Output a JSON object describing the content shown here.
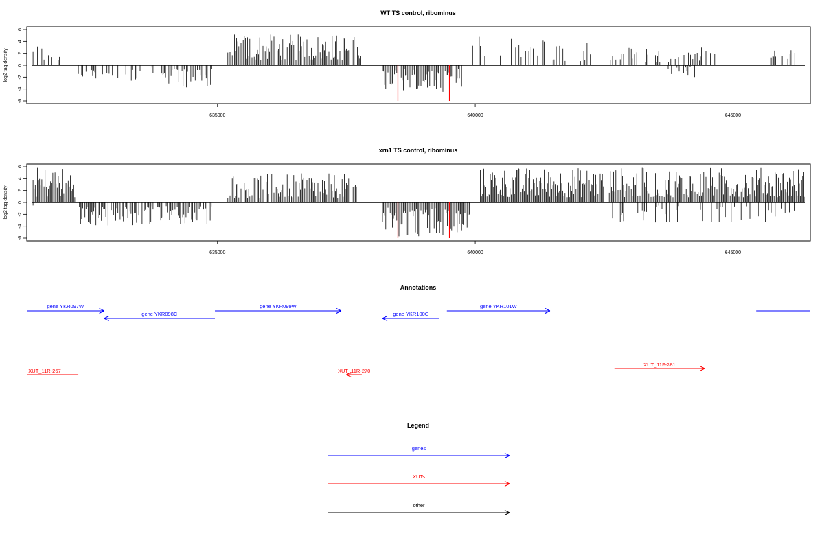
{
  "chart_data": [
    {
      "type": "bar",
      "title": "WT TS control, ribominus",
      "ylabel": "log2 tag density",
      "xlabel": "",
      "ylim": [
        -6,
        6
      ],
      "yticks": [
        -6,
        -4,
        -2,
        0,
        2,
        4,
        6
      ],
      "xlim": [
        631300,
        646500
      ],
      "xticks": [
        635000,
        640000,
        645000
      ],
      "grid": false,
      "bar_color": "#000000",
      "highlight_color": "#ff0000",
      "signal_regions": [
        {
          "start": 631400,
          "end": 632100,
          "strand": "+",
          "max": 3.6,
          "density": 0.35
        },
        {
          "start": 632300,
          "end": 633100,
          "strand": "-",
          "max": 2.8,
          "density": 0.35
        },
        {
          "start": 633200,
          "end": 633500,
          "strand": "-",
          "max": 2.8,
          "density": 0.35
        },
        {
          "start": 633600,
          "end": 634000,
          "strand": "-",
          "max": 2.5,
          "density": 0.35
        },
        {
          "start": 633950,
          "end": 634900,
          "strand": "-",
          "max": 3.8,
          "density": 0.55
        },
        {
          "start": 635200,
          "end": 637800,
          "strand": "+",
          "max": 5.2,
          "density": 0.95
        },
        {
          "start": 638200,
          "end": 639750,
          "strand": "-",
          "max": 4.5,
          "density": 0.9
        },
        {
          "start": 639950,
          "end": 640200,
          "strand": "+",
          "max": 5.0,
          "density": 0.4
        },
        {
          "start": 640400,
          "end": 642250,
          "strand": "+",
          "max": 4.5,
          "density": 0.35
        },
        {
          "start": 642600,
          "end": 644700,
          "strand": "+",
          "max": 3.2,
          "density": 0.4
        },
        {
          "start": 643700,
          "end": 644400,
          "strand": "-",
          "max": 2.0,
          "density": 0.3
        },
        {
          "start": 645700,
          "end": 646200,
          "strand": "+",
          "max": 2.6,
          "density": 0.4
        }
      ],
      "highlighted_bars": [
        {
          "x": 638500,
          "value": -6
        },
        {
          "x": 639500,
          "value": -6
        }
      ]
    },
    {
      "type": "bar",
      "title": "xrn1 TS control, ribominus",
      "ylabel": "log2 tag density",
      "xlabel": "",
      "ylim": [
        -6,
        6
      ],
      "yticks": [
        -6,
        -4,
        -2,
        0,
        2,
        4,
        6
      ],
      "xlim": [
        631300,
        646500
      ],
      "xticks": [
        635000,
        640000,
        645000
      ],
      "grid": false,
      "bar_color": "#000000",
      "highlight_color": "#ff0000",
      "signal_regions": [
        {
          "start": 631400,
          "end": 632250,
          "strand": "+",
          "max": 6.0,
          "density": 1.0
        },
        {
          "start": 631400,
          "end": 631500,
          "strand": "-",
          "max": 3.2,
          "density": 0.6
        },
        {
          "start": 632300,
          "end": 634900,
          "strand": "-",
          "max": 4.0,
          "density": 0.7
        },
        {
          "start": 635200,
          "end": 637700,
          "strand": "+",
          "max": 4.9,
          "density": 0.9
        },
        {
          "start": 638200,
          "end": 639900,
          "strand": "-",
          "max": 5.8,
          "density": 1.0
        },
        {
          "start": 640100,
          "end": 642500,
          "strand": "+",
          "max": 5.9,
          "density": 1.0
        },
        {
          "start": 642600,
          "end": 646400,
          "strand": "+",
          "max": 5.9,
          "density": 1.0
        },
        {
          "start": 642600,
          "end": 646400,
          "strand": "-",
          "max": 3.4,
          "density": 0.25
        }
      ],
      "highlighted_bars": [
        {
          "x": 638500,
          "value": -6
        },
        {
          "x": 639500,
          "value": -6
        }
      ]
    }
  ],
  "annotations": {
    "title": "Annotations",
    "genes_color": "#0000ff",
    "xuts_color": "#ff0000",
    "genes": [
      {
        "label": "gene YKR097W",
        "start": 631300,
        "end": 632800,
        "strand": "+"
      },
      {
        "label": "gene YKR098C",
        "start": 632800,
        "end": 634950,
        "strand": "-"
      },
      {
        "label": "gene YKR099W",
        "start": 634950,
        "end": 637400,
        "strand": "+"
      },
      {
        "label": "gene YKR100C",
        "start": 638200,
        "end": 639300,
        "strand": "-"
      },
      {
        "label": "gene YKR101W",
        "start": 639450,
        "end": 641450,
        "strand": "+"
      },
      {
        "label": "",
        "start": 645450,
        "end": 646500,
        "strand": "+"
      }
    ],
    "xuts": [
      {
        "label": "XUT_11R-267",
        "start": 631300,
        "end": 632300,
        "strand": "-"
      },
      {
        "label": "XUT_11R-270",
        "start": 637500,
        "end": 637800,
        "strand": "-"
      },
      {
        "label": "XUT_11F-281",
        "start": 642700,
        "end": 644450,
        "strand": "+"
      }
    ]
  },
  "legend": {
    "title": "Legend",
    "items": [
      {
        "label": "genes",
        "color": "#0000ff"
      },
      {
        "label": "XUTs",
        "color": "#ff0000"
      },
      {
        "label": "other",
        "color": "#000000"
      }
    ]
  }
}
